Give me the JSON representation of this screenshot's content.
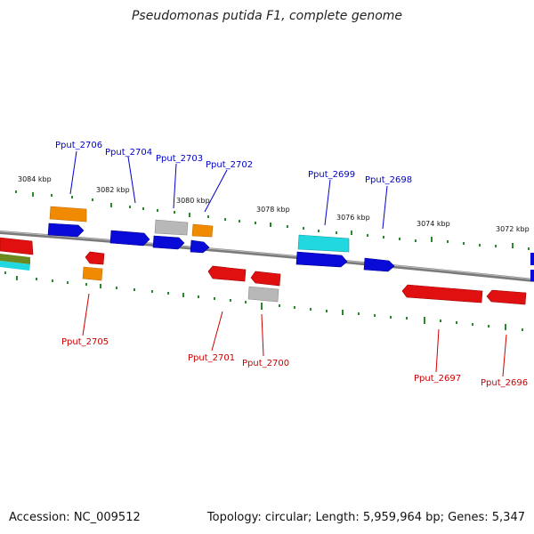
{
  "title": "Pseudomonas putida F1, complete genome",
  "accession": "Accession: NC_009512",
  "topology": "Topology: circular; Length: 5,959,964 bp; Genes: 5,347",
  "scale_labels": [
    "3084 kbp",
    "3082 kbp",
    "3080 kbp",
    "3078 kbp",
    "3076 kbp",
    "3074 kbp",
    "3072 kbp"
  ],
  "genes_top": [
    "Pput_2706",
    "Pput_2704",
    "Pput_2703",
    "Pput_2702",
    "Pput_2699",
    "Pput_2698"
  ],
  "genes_bottom": [
    "Pput_2705",
    "Pput_2701",
    "Pput_2700",
    "Pput_2697",
    "Pput_2696"
  ],
  "colors": {
    "forward_label": "#0000cc",
    "reverse_label": "#cc0000",
    "blue": "#0a0ad8",
    "red": "#e01010",
    "orange": "#f08a00",
    "gray": "#b8b8b8",
    "cyan": "#22d8e0",
    "green": "#6a8a20",
    "tick": "#2a8a2a"
  }
}
